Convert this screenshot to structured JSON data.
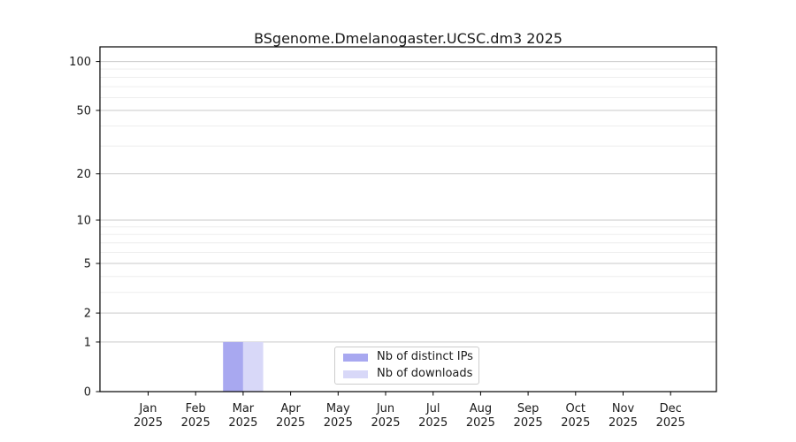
{
  "page": {
    "background_color": "#ffffff",
    "text_color": "#1a1a1a"
  },
  "chart_data": {
    "type": "bar",
    "title": "BSgenome.Dmelanogaster.UCSC.dm3 2025",
    "x": {
      "months": [
        "Jan",
        "Feb",
        "Mar",
        "Apr",
        "May",
        "Jun",
        "Jul",
        "Aug",
        "Sep",
        "Oct",
        "Nov",
        "Dec"
      ],
      "year": "2025"
    },
    "categories": [
      "Jan 2025",
      "Feb 2025",
      "Mar 2025",
      "Apr 2025",
      "May 2025",
      "Jun 2025",
      "Jul 2025",
      "Aug 2025",
      "Sep 2025",
      "Oct 2025",
      "Nov 2025",
      "Dec 2025"
    ],
    "series": [
      {
        "name": "Nb of distinct IPs",
        "color": "#a8a8f0",
        "values": [
          0,
          0,
          1,
          0,
          0,
          0,
          0,
          0,
          0,
          0,
          0,
          0
        ]
      },
      {
        "name": "Nb of downloads",
        "color": "#d8d8f8",
        "values": [
          0,
          0,
          1,
          0,
          0,
          0,
          0,
          0,
          0,
          0,
          0,
          0
        ]
      }
    ],
    "y_axis": {
      "scale": "log1p",
      "major_ticks": [
        0,
        1,
        2,
        5,
        10,
        20,
        50,
        100
      ],
      "minor_gridlines": [
        3,
        4,
        6,
        7,
        8,
        9,
        30,
        40,
        60,
        70,
        80,
        90
      ],
      "ylim": [
        0,
        123
      ]
    },
    "grid": {
      "orientation": "horizontal",
      "major_color": "#c9c9c9",
      "minor_color": "#ebebeb"
    },
    "axis_color": "#000000",
    "text_color": "#1a1a1a",
    "legend": {
      "position": "lower-center-inside",
      "entries": [
        "Nb of distinct IPs",
        "Nb of downloads"
      ]
    }
  }
}
